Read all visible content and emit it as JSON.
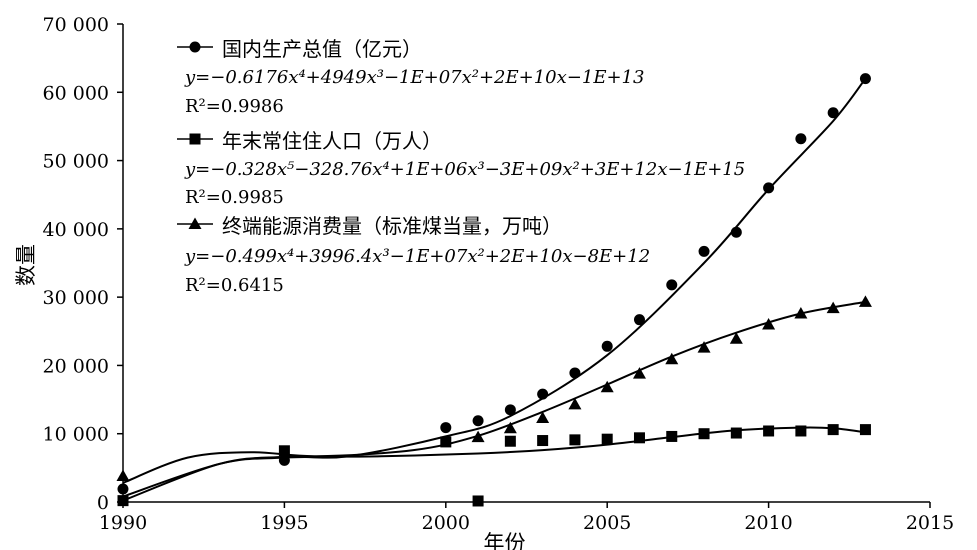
{
  "chart_data": {
    "type": "scatter",
    "xlabel": "年份",
    "ylabel": "数量",
    "xlim": [
      1990,
      2015
    ],
    "ylim": [
      0,
      70000
    ],
    "x_ticks": [
      "1990",
      "1995",
      "2000",
      "2005",
      "2010",
      "2015"
    ],
    "y_ticks": [
      "0",
      "10 000",
      "20 000",
      "30 000",
      "40 000",
      "50 000",
      "60 000",
      "70 000"
    ],
    "grid": false,
    "legend_position": "top-left",
    "series": [
      {
        "name": "国内生产总值（亿元）",
        "marker": "circle",
        "equation": "y=−0.6176x⁴+4949x³−1E+07x²+2E+10x−1E+13",
        "r2": "R²=0.9986",
        "x": [
          1990,
          1995,
          2000,
          2001,
          2002,
          2003,
          2004,
          2005,
          2006,
          2007,
          2008,
          2009,
          2010,
          2011,
          2012,
          2013
        ],
        "values": [
          1900,
          6100,
          10900,
          11900,
          13500,
          15800,
          18900,
          22800,
          26700,
          31800,
          36700,
          39500,
          46000,
          53200,
          57000,
          62000
        ],
        "trend": [
          [
            1990,
            200
          ],
          [
            1993,
            5600
          ],
          [
            1995,
            6600
          ],
          [
            1997,
            6700
          ],
          [
            2000,
            9600
          ],
          [
            2002,
            12600
          ],
          [
            2005,
            21500
          ],
          [
            2008,
            35000
          ],
          [
            2010,
            45800
          ],
          [
            2012,
            55800
          ],
          [
            2013,
            62000
          ]
        ]
      },
      {
        "name": "年末常住住人口（万人）",
        "marker": "square",
        "equation": "y=−0.328x⁵−328.76x⁴+1E+06x³−3E+09x²+3E+12x−1E+15",
        "r2": "R²=0.9985",
        "x": [
          1990,
          1995,
          2000,
          2001,
          2002,
          2003,
          2004,
          2005,
          2006,
          2007,
          2008,
          2009,
          2010,
          2011,
          2012,
          2013
        ],
        "values": [
          200,
          7500,
          8800,
          150,
          8900,
          9000,
          9100,
          9200,
          9400,
          9600,
          10000,
          10100,
          10400,
          10400,
          10600,
          10600
        ],
        "trend": [
          [
            1990,
            800
          ],
          [
            1993,
            5600
          ],
          [
            1995,
            6500
          ],
          [
            1998,
            6700
          ],
          [
            2001,
            7100
          ],
          [
            2003,
            7600
          ],
          [
            2005,
            8400
          ],
          [
            2007,
            9500
          ],
          [
            2009,
            10500
          ],
          [
            2011,
            10900
          ],
          [
            2012,
            10800
          ],
          [
            2013,
            10200
          ]
        ]
      },
      {
        "name": "终端能源消费量（标准煤当量，万吨）",
        "marker": "triangle",
        "equation": "y=−0.499x⁴+3996.4x³−1E+07x²+2E+10x−8E+12",
        "r2": "R²=0.6415",
        "x": [
          1990,
          2001,
          2002,
          2003,
          2004,
          2005,
          2006,
          2007,
          2008,
          2009,
          2010,
          2011,
          2012,
          2013
        ],
        "values": [
          3800,
          9500,
          10800,
          12300,
          14300,
          16800,
          18800,
          20900,
          22600,
          23900,
          26000,
          27600,
          28400,
          29300
        ],
        "trend": [
          [
            1990,
            2800
          ],
          [
            1992,
            6500
          ],
          [
            1994,
            7300
          ],
          [
            1996,
            6700
          ],
          [
            1999,
            7600
          ],
          [
            2001,
            9700
          ],
          [
            2003,
            13200
          ],
          [
            2005,
            17200
          ],
          [
            2007,
            21300
          ],
          [
            2009,
            24800
          ],
          [
            2011,
            27600
          ],
          [
            2013,
            29300
          ]
        ]
      }
    ]
  }
}
